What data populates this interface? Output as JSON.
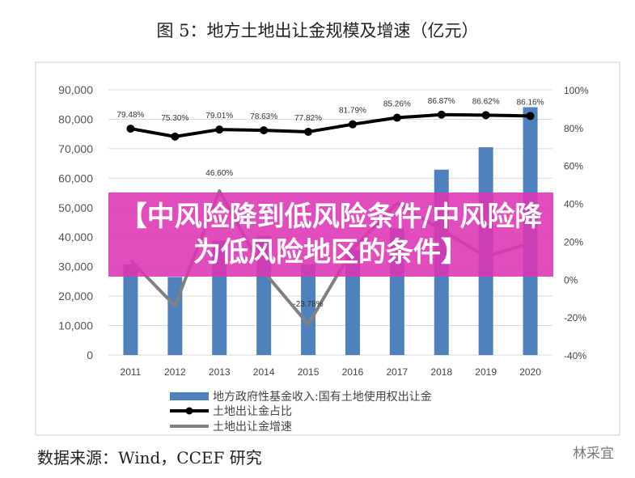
{
  "title": "图 5：地方土地出让金规模及增速（亿元）",
  "source": "数据来源：Wind，CCEF 研究",
  "watermark": "林采宜",
  "banner": "【中风险降到低风险条件/中风险降为低风险地区的条件】",
  "chart_data": {
    "type": "bar+line",
    "categories": [
      "2011",
      "2012",
      "2013",
      "2014",
      "2015",
      "2016",
      "2017",
      "2018",
      "2019",
      "2020"
    ],
    "y_left": {
      "min": 0,
      "max": 90000,
      "ticks": [
        "0",
        "10,000",
        "20,000",
        "30,000",
        "40,000",
        "50,000",
        "60,000",
        "70,000",
        "80,000",
        "90,000"
      ]
    },
    "y_right": {
      "min": -0.4,
      "max": 1.0,
      "ticks": [
        "-40%",
        "-20%",
        "0%",
        "20%",
        "40%",
        "60%",
        "80%",
        "100%"
      ]
    },
    "series": [
      {
        "name": "地方政府性基金收入:国有土地使用权出让金",
        "type": "bar",
        "axis": "left",
        "color": "#4f81bd",
        "values": [
          30800,
          26500,
          38800,
          40400,
          30800,
          35600,
          43000,
          62900,
          70500,
          84100
        ]
      },
      {
        "name": "土地出让金占比",
        "type": "line",
        "axis": "right",
        "color": "#000000",
        "values": [
          0.7948,
          0.753,
          0.7901,
          0.7863,
          0.7782,
          0.8179,
          0.8526,
          0.8687,
          0.8662,
          0.8616
        ],
        "labels": [
          "79.48%",
          "75.30%",
          "79.01%",
          "78.63%",
          "77.82%",
          "81.79%",
          "85.26%",
          "86.87%",
          "86.62%",
          "86.16%"
        ]
      },
      {
        "name": "土地出让金增速",
        "type": "line",
        "axis": "right",
        "color": "#808080",
        "values": [
          0.1,
          -0.14,
          0.466,
          0.04,
          -0.2378,
          0.16,
          0.4,
          0.26,
          0.12,
          0.19
        ],
        "labels": [
          "",
          "",
          "46.60%",
          "",
          "-23.78%",
          "",
          "",
          "",
          "",
          ""
        ]
      }
    ],
    "legend_position": "bottom",
    "grid": true
  }
}
